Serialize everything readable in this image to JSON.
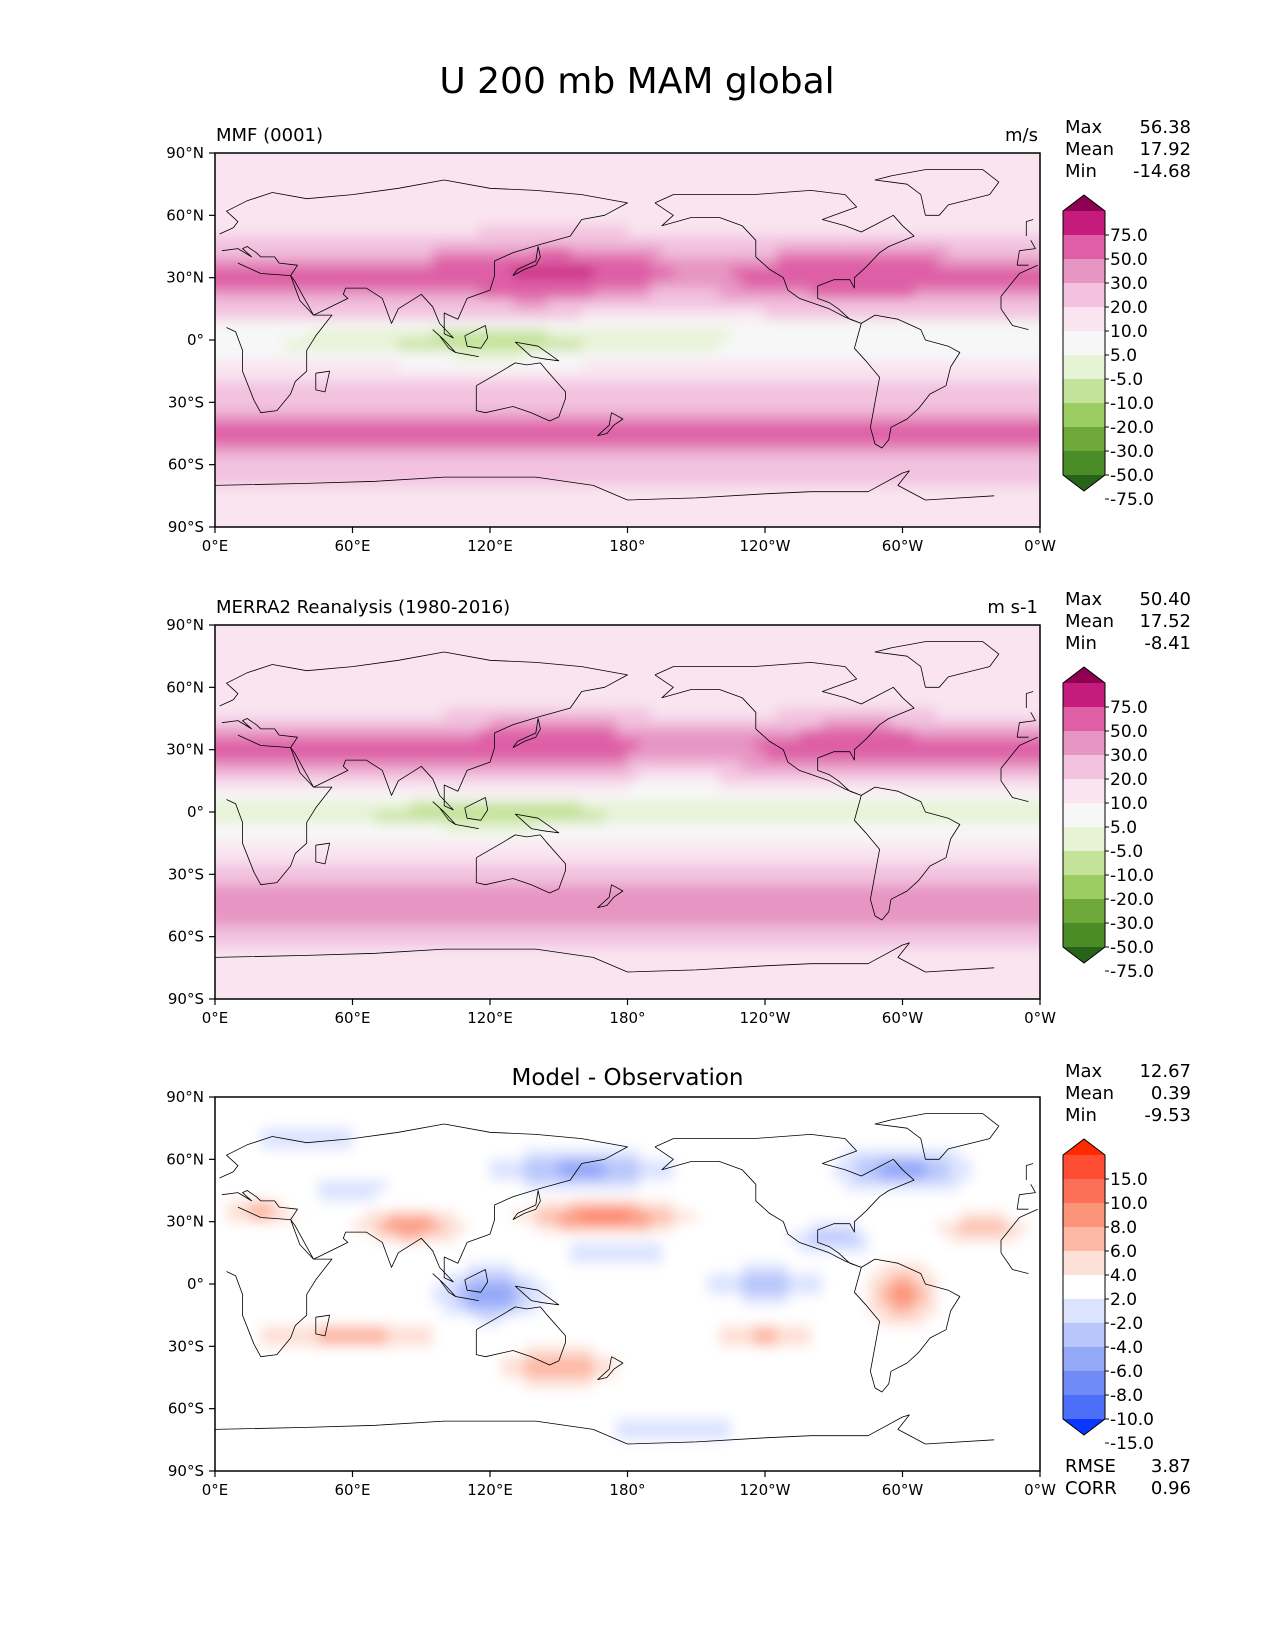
{
  "chart_data": {
    "title": "U 200 mb MAM global",
    "panels": [
      {
        "type": "contour-map",
        "left_title": "MMF (0001)",
        "center_title": "",
        "units": "m/s",
        "stats": [
          {
            "label": "Max",
            "value": "56.38"
          },
          {
            "label": "Mean",
            "value": "17.92"
          },
          {
            "label": "Min",
            "value": "-14.68"
          }
        ],
        "colorbar": {
          "levels": [
            "75.0",
            "50.0",
            "30.0",
            "20.0",
            "10.0",
            "5.0",
            "-5.0",
            "-10.0",
            "-20.0",
            "-30.0",
            "-50.0",
            "-75.0"
          ],
          "colors": [
            "#8e0152",
            "#c51b7d",
            "#de5fa6",
            "#e796c4",
            "#f2c2df",
            "#f9e4f0",
            "#f7f7f7",
            "#e6f3d4",
            "#c4e39a",
            "#9ccd62",
            "#6ea93a",
            "#4a8d26",
            "#276419"
          ]
        },
        "field_model": "base"
      },
      {
        "type": "contour-map",
        "left_title": "MERRA2 Reanalysis (1980-2016)",
        "center_title": "",
        "units": "m s-1",
        "stats": [
          {
            "label": "Max",
            "value": "50.40"
          },
          {
            "label": "Mean",
            "value": "17.52"
          },
          {
            "label": "Min",
            "value": "-8.41"
          }
        ],
        "colorbar": {
          "levels": [
            "75.0",
            "50.0",
            "30.0",
            "20.0",
            "10.0",
            "5.0",
            "-5.0",
            "-10.0",
            "-20.0",
            "-30.0",
            "-50.0",
            "-75.0"
          ],
          "colors": [
            "#8e0152",
            "#c51b7d",
            "#de5fa6",
            "#e796c4",
            "#f2c2df",
            "#f9e4f0",
            "#f7f7f7",
            "#e6f3d4",
            "#c4e39a",
            "#9ccd62",
            "#6ea93a",
            "#4a8d26",
            "#276419"
          ]
        },
        "field_model": "obs"
      },
      {
        "type": "contour-map",
        "left_title": "",
        "center_title": "Model - Observation",
        "units": "",
        "stats": [
          {
            "label": "Max",
            "value": "12.67"
          },
          {
            "label": "Mean",
            "value": "0.39"
          },
          {
            "label": "Min",
            "value": "-9.53"
          }
        ],
        "colorbar": {
          "levels": [
            "15.0",
            "10.0",
            "8.0",
            "6.0",
            "4.0",
            "2.0",
            "-2.0",
            "-4.0",
            "-6.0",
            "-8.0",
            "-10.0",
            "-15.0"
          ],
          "colors": [
            "#ff2a00",
            "#ff4d33",
            "#fb7057",
            "#fc9479",
            "#fdb9a6",
            "#fde0d6",
            "#ffffff",
            "#dce3ff",
            "#b8c6fb",
            "#94a8f8",
            "#708bf6",
            "#4d6ef9",
            "#0a36ff"
          ]
        },
        "metrics": [
          {
            "label": "RMSE",
            "value": "3.87"
          },
          {
            "label": "CORR",
            "value": "0.96"
          }
        ],
        "field_model": "diff"
      }
    ],
    "xaxis": {
      "ticks": [
        "0°E",
        "60°E",
        "120°E",
        "180°",
        "120°W",
        "60°W",
        "0°W"
      ],
      "range": [
        0,
        360
      ]
    },
    "yaxis": {
      "ticks": [
        "90°N",
        "60°N",
        "30°N",
        "0°",
        "30°S",
        "60°S",
        "90°S"
      ],
      "range": [
        90,
        -90
      ]
    }
  }
}
